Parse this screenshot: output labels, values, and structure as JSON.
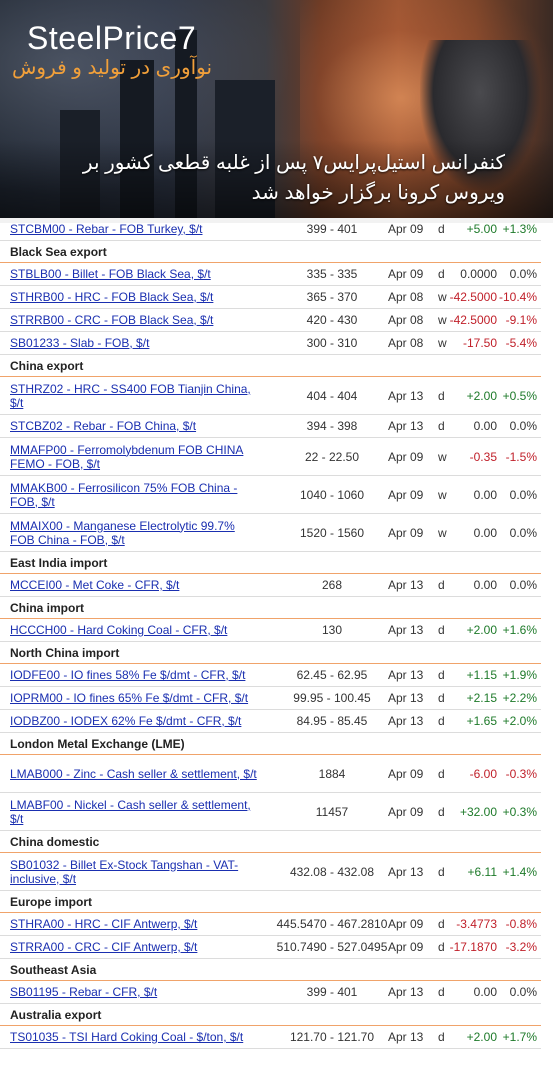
{
  "banner": {
    "logo": "SteelPrice7",
    "tagline": "نوآوری در تولید و فروش",
    "headline": "کنفرانس استیل‌پرایس۷ پس از غلبه قطعی کشور بر ویروس کرونا برگزار خواهد شد"
  },
  "sections": [
    {
      "title": "",
      "rows": [
        {
          "name": "STCBM00 - Rebar - FOB Turkey, $/t",
          "range": "399 - 401",
          "date": "Apr 09",
          "period": "d",
          "change": "+5.00",
          "percent": "+1.3%",
          "dir": "pos"
        }
      ]
    },
    {
      "title": "Black Sea export",
      "rows": [
        {
          "name": "STBLB00 - Billet - FOB Black Sea, $/t",
          "range": "335 - 335",
          "date": "Apr 09",
          "period": "d",
          "change": "0.0000",
          "percent": "0.0%",
          "dir": "zero"
        },
        {
          "name": "STHRB00 - HRC - FOB Black Sea, $/t",
          "range": "365 - 370",
          "date": "Apr 08",
          "period": "w",
          "change": "-42.5000",
          "percent": "-10.4%",
          "dir": "neg"
        },
        {
          "name": "STRRB00 - CRC - FOB Black Sea, $/t",
          "range": "420 - 430",
          "date": "Apr 08",
          "period": "w",
          "change": "-42.5000",
          "percent": "-9.1%",
          "dir": "neg"
        },
        {
          "name": "SB01233 - Slab - FOB, $/t",
          "range": "300 - 310",
          "date": "Apr 08",
          "period": "w",
          "change": "-17.50",
          "percent": "-5.4%",
          "dir": "neg"
        }
      ]
    },
    {
      "title": "China export",
      "rows": [
        {
          "name": "STHRZ02 - HRC - SS400 FOB Tianjin China, $/t",
          "range": "404 - 404",
          "date": "Apr 13",
          "period": "d",
          "change": "+2.00",
          "percent": "+0.5%",
          "dir": "pos",
          "tall": true
        },
        {
          "name": "STCBZ02 - Rebar - FOB China, $/t",
          "range": "394 - 398",
          "date": "Apr 13",
          "period": "d",
          "change": "0.00",
          "percent": "0.0%",
          "dir": "zero"
        },
        {
          "name": "MMAFP00 - Ferromolybdenum FOB CHINA FEMO - FOB, $/t",
          "range": "22 - 22.50",
          "date": "Apr 09",
          "period": "w",
          "change": "-0.35",
          "percent": "-1.5%",
          "dir": "neg",
          "tall": true
        },
        {
          "name": "MMAKB00 - Ferrosilicon 75% FOB China - FOB, $/t",
          "range": "1040 - 1060",
          "date": "Apr 09",
          "period": "w",
          "change": "0.00",
          "percent": "0.0%",
          "dir": "zero",
          "tall": true
        },
        {
          "name": "MMAIX00 - Manganese Electrolytic 99.7% FOB China - FOB, $/t",
          "range": "1520 - 1560",
          "date": "Apr 09",
          "period": "w",
          "change": "0.00",
          "percent": "0.0%",
          "dir": "zero",
          "tall": true
        }
      ]
    },
    {
      "title": "East India import",
      "rows": [
        {
          "name": "MCCEI00 - Met Coke - CFR, $/t",
          "range": "268",
          "date": "Apr 13",
          "period": "d",
          "change": "0.00",
          "percent": "0.0%",
          "dir": "zero"
        }
      ]
    },
    {
      "title": "China import",
      "rows": [
        {
          "name": "HCCCH00 - Hard Coking Coal - CFR, $/t",
          "range": "130",
          "date": "Apr 13",
          "period": "d",
          "change": "+2.00",
          "percent": "+1.6%",
          "dir": "pos"
        }
      ]
    },
    {
      "title": "North China import",
      "rows": [
        {
          "name": "IODFE00 - IO fines 58% Fe $/dmt - CFR, $/t",
          "range": "62.45 - 62.95",
          "date": "Apr 13",
          "period": "d",
          "change": "+1.15",
          "percent": "+1.9%",
          "dir": "pos"
        },
        {
          "name": "IOPRM00 - IO fines 65% Fe $/dmt - CFR, $/t",
          "range": "99.95 - 100.45",
          "date": "Apr 13",
          "period": "d",
          "change": "+2.15",
          "percent": "+2.2%",
          "dir": "pos"
        },
        {
          "name": "IODBZ00 - IODEX 62% Fe $/dmt - CFR, $/t",
          "range": "84.95 - 85.45",
          "date": "Apr 13",
          "period": "d",
          "change": "+1.65",
          "percent": "+2.0%",
          "dir": "pos"
        }
      ]
    },
    {
      "title": "London Metal Exchange (LME)",
      "rows": [
        {
          "name": "LMAB000 - Zinc - Cash seller & settlement, $/t",
          "range": "1884",
          "date": "Apr 09",
          "period": "d",
          "change": "-6.00",
          "percent": "-0.3%",
          "dir": "neg",
          "tall": true
        },
        {
          "name": "LMABF00 - Nickel - Cash seller & settlement, $/t",
          "range": "11457",
          "date": "Apr 09",
          "period": "d",
          "change": "+32.00",
          "percent": "+0.3%",
          "dir": "pos",
          "tall": true
        }
      ]
    },
    {
      "title": "China domestic",
      "rows": [
        {
          "name": "SB01032 - Billet Ex-Stock Tangshan - VAT-inclusive, $/t",
          "range": "432.08 - 432.08",
          "date": "Apr 13",
          "period": "d",
          "change": "+6.11",
          "percent": "+1.4%",
          "dir": "pos",
          "tall": true
        }
      ]
    },
    {
      "title": "Europe import",
      "rows": [
        {
          "name": "STHRA00 - HRC - CIF Antwerp, $/t",
          "range": "445.5470 - 467.2810",
          "date": "Apr 09",
          "period": "d",
          "change": "-3.4773",
          "percent": "-0.8%",
          "dir": "neg"
        },
        {
          "name": "STRRA00 - CRC - CIF Antwerp, $/t",
          "range": "510.7490 - 527.0495",
          "date": "Apr 09",
          "period": "d",
          "change": "-17.1870",
          "percent": "-3.2%",
          "dir": "neg"
        }
      ]
    },
    {
      "title": "Southeast Asia",
      "rows": [
        {
          "name": "SB01195 - Rebar - CFR, $/t",
          "range": "399 - 401",
          "date": "Apr 13",
          "period": "d",
          "change": "0.00",
          "percent": "0.0%",
          "dir": "zero"
        }
      ]
    },
    {
      "title": "Australia export",
      "rows": [
        {
          "name": "TS01035 - TSI Hard Coking Coal - $/ton, $/t",
          "range": "121.70 - 121.70",
          "date": "Apr 13",
          "period": "d",
          "change": "+2.00",
          "percent": "+1.7%",
          "dir": "pos"
        }
      ]
    }
  ]
}
